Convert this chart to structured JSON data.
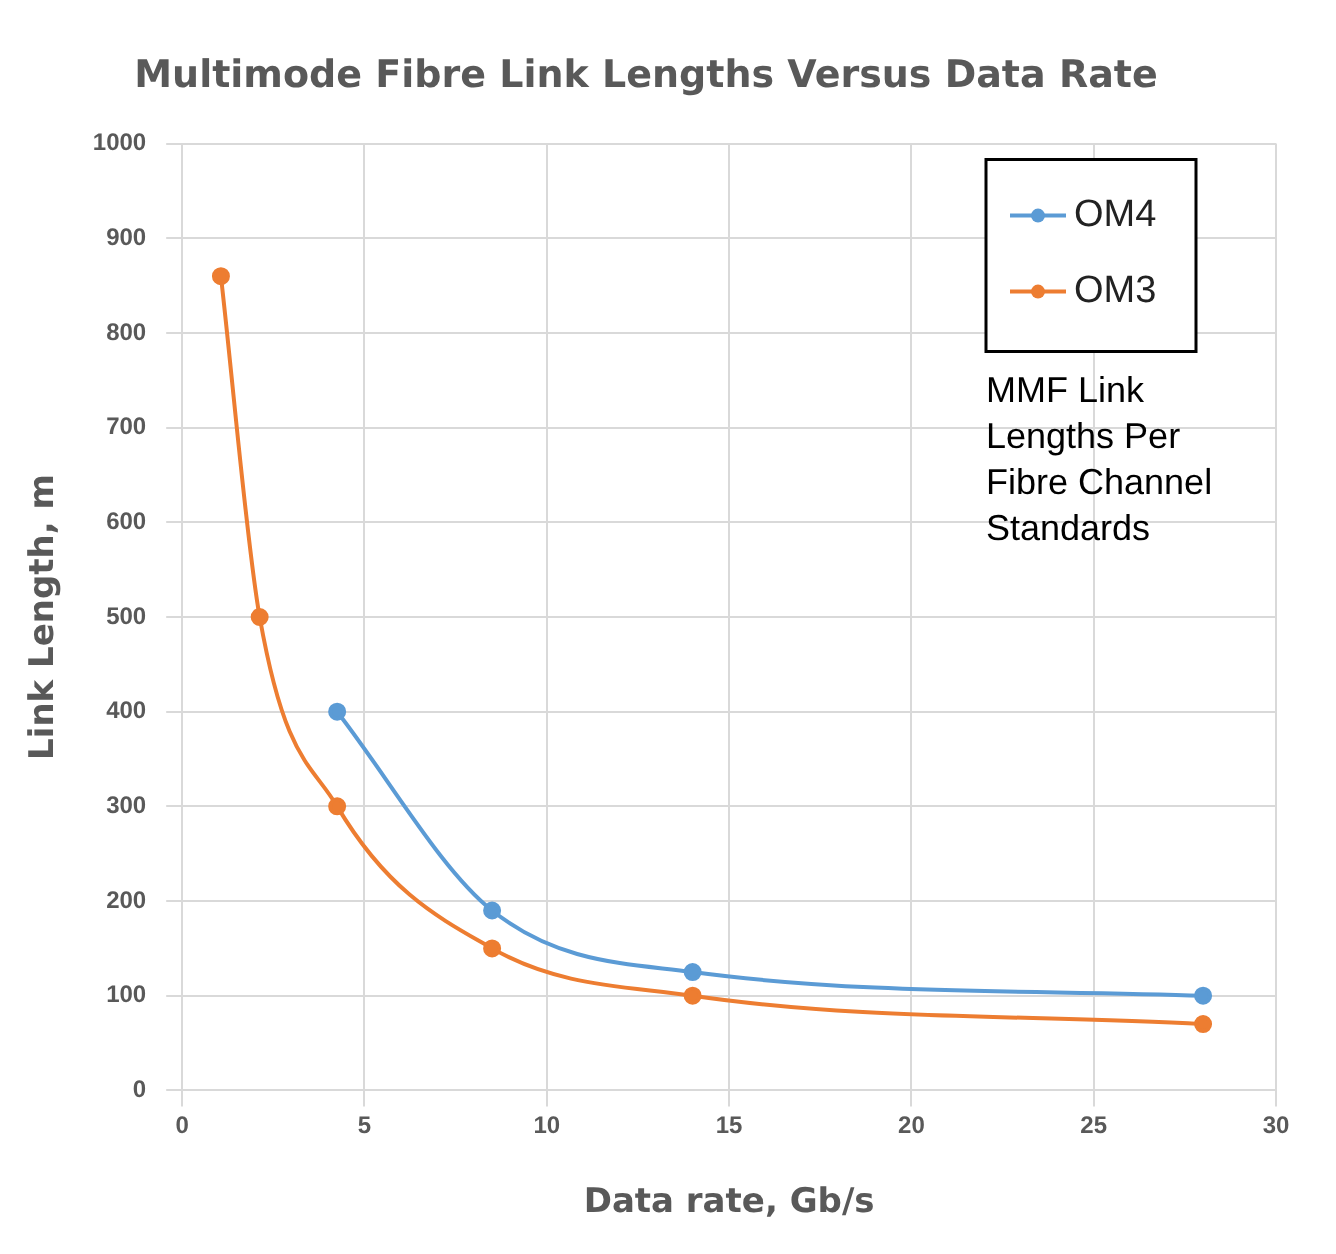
{
  "chart_data": {
    "type": "line",
    "title": "Multimode Fibre Link Lengths Versus Data Rate",
    "xlabel": "Data rate, Gb/s",
    "ylabel": "Link Length, m",
    "series": [
      {
        "name": "OM4",
        "color": "#5b9bd5",
        "x": [
          4.25,
          8.5,
          14,
          28
        ],
        "values": [
          400,
          190,
          125,
          100
        ]
      },
      {
        "name": "OM3",
        "color": "#ed7d31",
        "x": [
          1.0625,
          2.125,
          4.25,
          8.5,
          14,
          28
        ],
        "values": [
          860,
          500,
          300,
          150,
          100,
          70
        ]
      }
    ],
    "xlim": [
      0,
      30
    ],
    "xticks": [
      0,
      5,
      10,
      15,
      20,
      25,
      30
    ],
    "ylim": [
      0,
      1000
    ],
    "yticks": [
      0,
      100,
      200,
      300,
      400,
      500,
      600,
      700,
      800,
      900,
      1000
    ],
    "grid": true,
    "legend": "top right",
    "marker": "circle",
    "line_style": "solid",
    "annotations": [
      "MMF Link Lengths Per Fibre Channel Standards"
    ]
  }
}
